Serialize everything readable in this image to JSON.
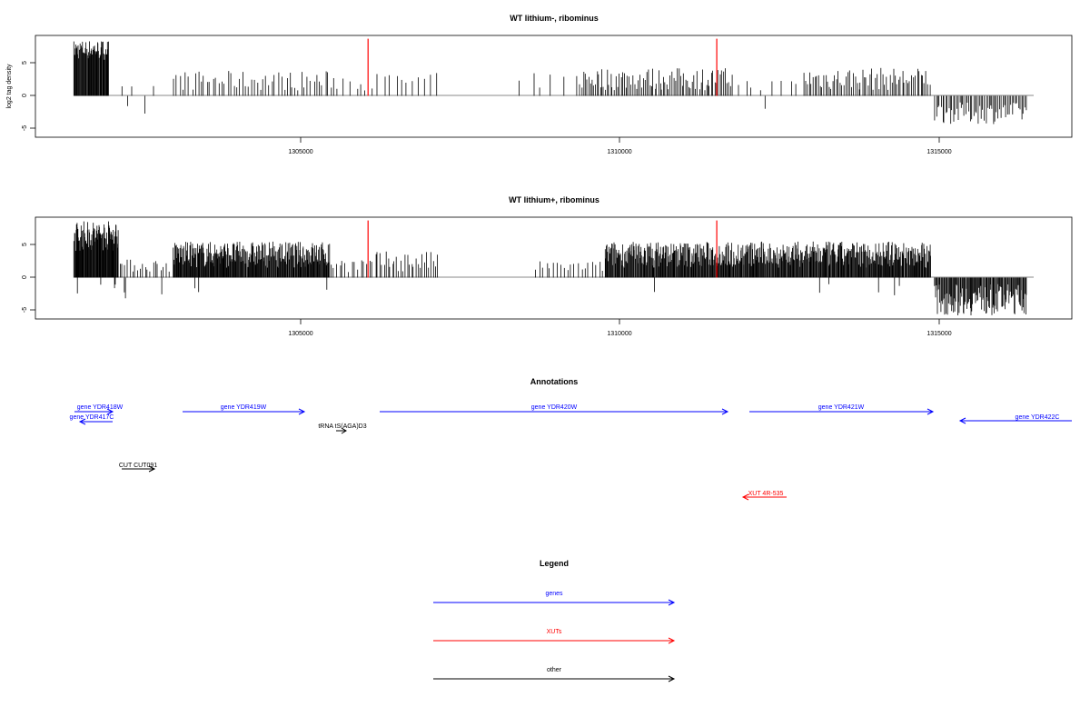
{
  "colors": {
    "gene": "#0000ff",
    "xut": "#ff0000",
    "other": "#000000",
    "highlight": "#ff0000",
    "axis": "#000000",
    "baseline": "#888888"
  },
  "chart_data": [
    {
      "type": "bar",
      "title": "WT lithium-, ribominus",
      "ylabel": "log2 tag density",
      "xlim": [
        1301000,
        1317200
      ],
      "ylim": [
        -6.3,
        9.2
      ],
      "yticks": [
        -5,
        0,
        5
      ],
      "xticks": [
        1305000,
        1310000,
        1315000
      ],
      "grid": false,
      "highlight_positions": [
        1306200,
        1311650
      ],
      "highlight_value": 8.7,
      "segments": [
        {
          "from": 1301600,
          "to": 1302150,
          "min": 5.5,
          "max": 8.5,
          "count": 60,
          "neg": 0
        },
        {
          "from": 1302200,
          "to": 1303100,
          "min": 0.8,
          "max": 1.5,
          "count": 3,
          "neg": 2
        },
        {
          "from": 1303150,
          "to": 1305700,
          "min": 0.8,
          "max": 3.8,
          "count": 55,
          "neg": 0
        },
        {
          "from": 1305700,
          "to": 1307300,
          "min": 0.8,
          "max": 3.5,
          "count": 18,
          "neg": 0
        },
        {
          "from": 1308500,
          "to": 1309500,
          "min": 1.0,
          "max": 3.5,
          "count": 6,
          "neg": 0
        },
        {
          "from": 1309500,
          "to": 1311900,
          "min": 0.8,
          "max": 4.3,
          "count": 90,
          "neg": 0
        },
        {
          "from": 1311900,
          "to": 1313000,
          "min": 0.8,
          "max": 2.5,
          "count": 8,
          "neg": 1
        },
        {
          "from": 1313000,
          "to": 1315000,
          "min": 0.8,
          "max": 4.3,
          "count": 70,
          "neg": 0
        },
        {
          "from": 1315050,
          "to": 1316500,
          "min": -4.3,
          "max": -1.0,
          "count": 60,
          "neg": 0
        }
      ]
    },
    {
      "type": "bar",
      "title": "WT lithium+, ribominus",
      "ylabel": "",
      "xlim": [
        1301000,
        1317200
      ],
      "ylim": [
        -6.3,
        9.2
      ],
      "yticks": [
        -5,
        0,
        5
      ],
      "xticks": [
        1305000,
        1310000,
        1315000
      ],
      "grid": false,
      "highlight_positions": [
        1306200,
        1311650
      ],
      "highlight_value": 8.7,
      "segments": [
        {
          "from": 1301600,
          "to": 1302300,
          "min": 4.0,
          "max": 8.7,
          "count": 90,
          "neg": 4
        },
        {
          "from": 1302300,
          "to": 1303100,
          "min": 0.8,
          "max": 2.8,
          "count": 20,
          "neg": 3
        },
        {
          "from": 1303150,
          "to": 1305600,
          "min": 1.5,
          "max": 5.5,
          "count": 260,
          "neg": 3
        },
        {
          "from": 1305600,
          "to": 1306300,
          "min": 0.8,
          "max": 3.0,
          "count": 15,
          "neg": 0
        },
        {
          "from": 1306300,
          "to": 1307300,
          "min": 0.8,
          "max": 4.0,
          "count": 30,
          "neg": 0
        },
        {
          "from": 1308800,
          "to": 1309900,
          "min": 0.8,
          "max": 2.5,
          "count": 20,
          "neg": 0
        },
        {
          "from": 1309900,
          "to": 1315000,
          "min": 1.5,
          "max": 5.5,
          "count": 500,
          "neg": 6
        },
        {
          "from": 1315050,
          "to": 1316500,
          "min": -5.8,
          "max": -1.0,
          "count": 120,
          "neg": 0
        }
      ]
    }
  ],
  "ticklabels": {
    "x": [
      "1305000",
      "1310000",
      "1315000"
    ],
    "y": [
      "-5",
      "0",
      "5"
    ]
  },
  "annotations": {
    "title": "Annotations",
    "genes": [
      {
        "label": "gene YDR418W",
        "start": 1301400,
        "end": 1302000
      },
      {
        "label": "gene YDR417C",
        "start": 1302000,
        "end": 1301600
      },
      {
        "label": "gene YDR419W",
        "start": 1302700,
        "end": 1304900
      },
      {
        "label": "gene YDR420W",
        "start": 1306100,
        "end": 1311700
      },
      {
        "label": "gene YDR421W",
        "start": 1312050,
        "end": 1314900
      },
      {
        "label": "gene YDR422C",
        "start": 1317200,
        "end": 1315400
      }
    ],
    "xuts": [
      {
        "label": "XUT 4R-535",
        "start": 1312700,
        "end": 1312000
      }
    ],
    "others": [
      {
        "label": "tRNA tS(AGA)D3",
        "start": 1305600,
        "end": 1305800
      },
      {
        "label": "CUT CUT091",
        "start": 1302050,
        "end": 1302600
      }
    ]
  },
  "legend": {
    "title": "Legend",
    "items": [
      {
        "label": "genes",
        "kind": "gene"
      },
      {
        "label": "XUTs",
        "kind": "xut"
      },
      {
        "label": "other",
        "kind": "other"
      }
    ]
  }
}
